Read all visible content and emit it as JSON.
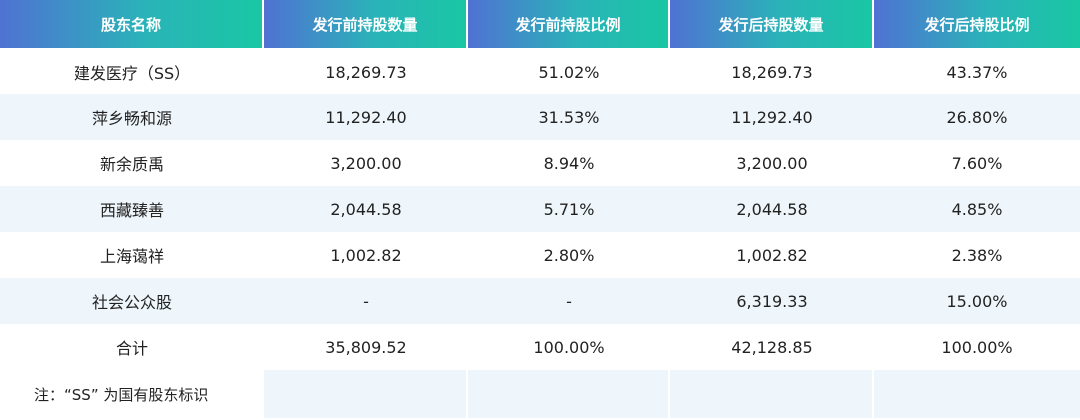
{
  "headers": [
    "股东名称",
    "发行前持股数量",
    "发行前持股比例",
    "发行后持股数量",
    "发行后持股比例"
  ],
  "rows": [
    [
      "建发医疗（SS）",
      "18,269.73",
      "51.02%",
      "18,269.73",
      "43.37%"
    ],
    [
      "萍乡畅和源",
      "11,292.40",
      "31.53%",
      "11,292.40",
      "26.80%"
    ],
    [
      "新余质禹",
      "3,200.00",
      "8.94%",
      "3,200.00",
      "7.60%"
    ],
    [
      "西藏臻善",
      "2,044.58",
      "5.71%",
      "2,044.58",
      "4.85%"
    ],
    [
      "上海蔼祥",
      "1,002.82",
      "2.80%",
      "1,002.82",
      "2.38%"
    ],
    [
      "社会公众股",
      "-",
      "-",
      "6,319.33",
      "15.00%"
    ],
    [
      "合计",
      "35,809.52",
      "100.00%",
      "42,128.85",
      "100.00%"
    ]
  ],
  "note": "注：“SS” 为国有股东标识",
  "colors": {
    "header_gradient_start": "#4f72d3",
    "header_gradient_end": "#19c7a4",
    "alt_row": "#eef6fb"
  }
}
